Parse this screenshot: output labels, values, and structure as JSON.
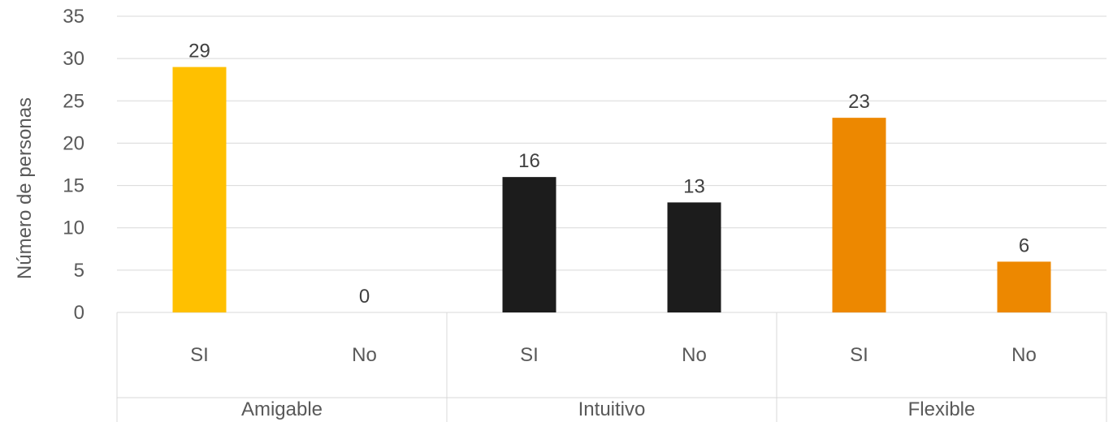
{
  "chart_data": {
    "type": "bar",
    "ylabel": "Número de personas",
    "xlabel": "",
    "ylim": [
      0,
      35
    ],
    "yticks": [
      0,
      5,
      10,
      15,
      20,
      25,
      30,
      35
    ],
    "grid": true,
    "groups": [
      {
        "label": "Amigable",
        "color": "#FFC000",
        "bars": [
          {
            "category": "SI",
            "value": 29
          },
          {
            "category": "No",
            "value": 0
          }
        ]
      },
      {
        "label": "Intuitivo",
        "color": "#1C1C1C",
        "bars": [
          {
            "category": "SI",
            "value": 16
          },
          {
            "category": "No",
            "value": 13
          }
        ]
      },
      {
        "label": "Flexible",
        "color": "#ED8800",
        "bars": [
          {
            "category": "SI",
            "value": 23
          },
          {
            "category": "No",
            "value": 6
          }
        ]
      }
    ]
  }
}
